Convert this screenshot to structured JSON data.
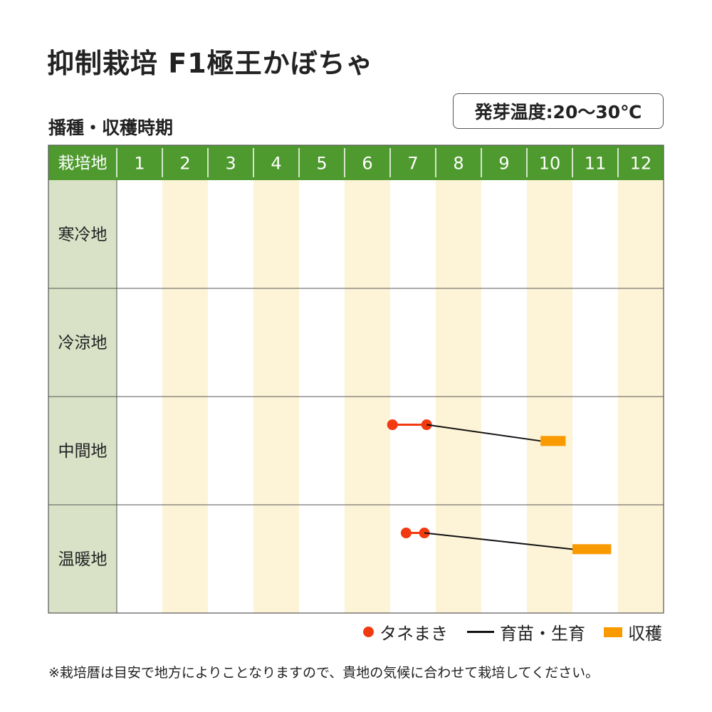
{
  "title": "抑制栽培 F1極王かぼちゃ",
  "subtitle": "播種・収穫時期",
  "germination_temp": "発芽温度:20～30℃",
  "legend": {
    "sowing": "タネまき",
    "growing": "育苗・生育",
    "harvest": "収穫"
  },
  "note": "※栽培暦は目安で地方によりことなりますので、貴地の気候に合わせて栽培してください。",
  "colors": {
    "header_green": "#4f9a2f",
    "region_bg": "#d9e2c7",
    "stripe": "#fdf3d6",
    "sowing": "#f23a10",
    "harvest": "#f89a00",
    "growing": "#111111"
  },
  "chart_data": {
    "type": "gantt",
    "header_label": "栽培地",
    "months": [
      "1",
      "2",
      "3",
      "4",
      "5",
      "6",
      "7",
      "8",
      "9",
      "10",
      "11",
      "12"
    ],
    "regions": [
      "寒冷地",
      "冷涼地",
      "中間地",
      "温暖地"
    ],
    "schedule": [
      {
        "region": "寒冷地",
        "sowing": null,
        "growing": null,
        "harvest": null
      },
      {
        "region": "冷涼地",
        "sowing": null,
        "growing": null,
        "harvest": null
      },
      {
        "region": "中間地",
        "sowing": [
          7.05,
          7.8
        ],
        "growing": [
          7.8,
          10.3
        ],
        "harvest": [
          10.3,
          10.85
        ]
      },
      {
        "region": "温暖地",
        "sowing": [
          7.35,
          7.75
        ],
        "growing": [
          7.75,
          11.0
        ],
        "harvest": [
          11.0,
          11.85
        ]
      }
    ]
  }
}
